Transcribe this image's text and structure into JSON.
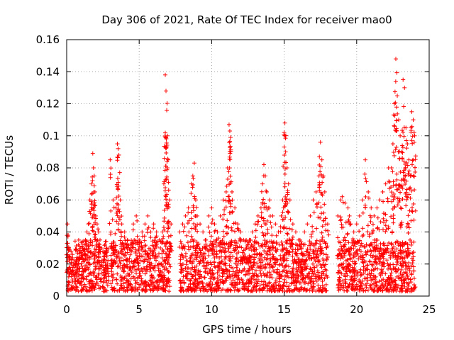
{
  "chart_data": {
    "type": "scatter",
    "title": "Day 306 of 2021, Rate Of TEC Index for receiver mao0",
    "xlabel": "GPS time / hours",
    "ylabel": "ROTI / TECUs",
    "xlim": [
      0,
      25
    ],
    "ylim": [
      0,
      0.16
    ],
    "grid": true,
    "marker": "+",
    "color": "#ff0000",
    "x_ticks": [
      "0",
      "5",
      "10",
      "15",
      "20",
      "25"
    ],
    "x_tick_values": [
      0,
      5,
      10,
      15,
      20,
      25
    ],
    "y_ticks": [
      "0",
      "0.02",
      "0.04",
      "0.06",
      "0.08",
      "0.1",
      "0.12",
      "0.14",
      "0.16"
    ],
    "y_tick_values": [
      0,
      0.02,
      0.04,
      0.06,
      0.08,
      0.1,
      0.12,
      0.14,
      0.16
    ],
    "series": [
      {
        "name": "ROTI",
        "x": [
          0.05,
          0.1,
          0.15,
          0.2,
          0.3,
          0.4,
          0.5,
          0.6,
          0.7,
          0.8,
          0.9,
          1.0,
          1.1,
          1.2,
          1.3,
          1.4,
          1.5,
          1.6,
          1.7,
          1.8,
          1.85,
          1.9,
          1.95,
          2.0,
          2.1,
          2.2,
          2.3,
          2.4,
          2.5,
          2.6,
          2.7,
          2.8,
          3.0,
          3.2,
          3.4,
          3.5,
          3.55,
          3.6,
          3.7,
          3.8,
          4.0,
          4.2,
          4.4,
          4.6,
          4.8,
          5.0,
          5.2,
          5.4,
          5.6,
          5.8,
          6.0,
          6.2,
          6.4,
          6.6,
          6.7,
          6.8,
          6.85,
          6.9,
          6.95,
          7.0,
          7.1,
          7.2,
          7.8,
          8.0,
          8.2,
          8.4,
          8.6,
          8.7,
          8.8,
          8.9,
          9.0,
          9.2,
          9.4,
          9.6,
          9.8,
          10.0,
          10.2,
          10.4,
          10.6,
          10.8,
          11.0,
          11.1,
          11.2,
          11.25,
          11.3,
          11.4,
          11.6,
          11.8,
          12.0,
          12.2,
          12.4,
          12.6,
          12.8,
          13.0,
          13.2,
          13.4,
          13.5,
          13.6,
          13.7,
          13.8,
          14.0,
          14.2,
          14.4,
          14.6,
          14.8,
          14.9,
          15.0,
          15.05,
          15.1,
          15.2,
          15.3,
          15.4,
          15.6,
          15.8,
          16.0,
          16.2,
          16.4,
          16.6,
          16.8,
          17.0,
          17.2,
          17.4,
          17.5,
          17.6,
          17.7,
          17.8,
          18.0,
          18.7,
          18.9,
          19.0,
          19.2,
          19.4,
          19.5,
          19.6,
          19.8,
          20.0,
          20.2,
          20.4,
          20.6,
          20.8,
          21.0,
          21.2,
          21.4,
          21.6,
          21.8,
          22.0,
          22.2,
          22.4,
          22.5,
          22.6,
          22.7,
          22.8,
          22.9,
          23.0,
          23.1,
          23.2,
          23.3,
          23.4,
          23.5,
          23.6,
          23.7,
          23.8,
          23.9,
          24.0
        ],
        "y": [
          0.045,
          0.038,
          0.03,
          0.025,
          0.02,
          0.018,
          0.022,
          0.019,
          0.024,
          0.02,
          0.028,
          0.025,
          0.03,
          0.032,
          0.035,
          0.04,
          0.045,
          0.06,
          0.07,
          0.089,
          0.08,
          0.075,
          0.065,
          0.05,
          0.045,
          0.04,
          0.035,
          0.03,
          0.028,
          0.025,
          0.022,
          0.02,
          0.085,
          0.06,
          0.055,
          0.095,
          0.092,
          0.088,
          0.06,
          0.045,
          0.04,
          0.035,
          0.03,
          0.045,
          0.05,
          0.035,
          0.04,
          0.045,
          0.05,
          0.04,
          0.045,
          0.04,
          0.035,
          0.04,
          0.07,
          0.138,
          0.128,
          0.116,
          0.1,
          0.085,
          0.06,
          0.045,
          0.04,
          0.045,
          0.05,
          0.055,
          0.07,
          0.075,
          0.083,
          0.06,
          0.05,
          0.045,
          0.04,
          0.035,
          0.05,
          0.055,
          0.045,
          0.04,
          0.05,
          0.06,
          0.065,
          0.08,
          0.107,
          0.103,
          0.099,
          0.065,
          0.055,
          0.045,
          0.04,
          0.035,
          0.03,
          0.035,
          0.04,
          0.045,
          0.05,
          0.055,
          0.07,
          0.082,
          0.075,
          0.065,
          0.06,
          0.05,
          0.045,
          0.04,
          0.05,
          0.06,
          0.093,
          0.108,
          0.09,
          0.08,
          0.07,
          0.06,
          0.045,
          0.04,
          0.035,
          0.03,
          0.04,
          0.045,
          0.05,
          0.06,
          0.065,
          0.075,
          0.096,
          0.085,
          0.075,
          0.065,
          0.045,
          0.05,
          0.06,
          0.062,
          0.058,
          0.055,
          0.05,
          0.045,
          0.04,
          0.045,
          0.05,
          0.06,
          0.085,
          0.065,
          0.055,
          0.05,
          0.055,
          0.06,
          0.065,
          0.07,
          0.08,
          0.08,
          0.095,
          0.12,
          0.148,
          0.125,
          0.11,
          0.1,
          0.09,
          0.135,
          0.13,
          0.105,
          0.095,
          0.085,
          0.075,
          0.115,
          0.11,
          0.1
        ]
      }
    ],
    "data_gaps_hours": [
      [
        2.9,
        3.0
      ],
      [
        7.2,
        7.8
      ],
      [
        18.0,
        18.7
      ]
    ],
    "background_band": {
      "y_min": 0.003,
      "y_max": 0.035,
      "description": "dense continuous scatter of low ROTI values"
    }
  }
}
